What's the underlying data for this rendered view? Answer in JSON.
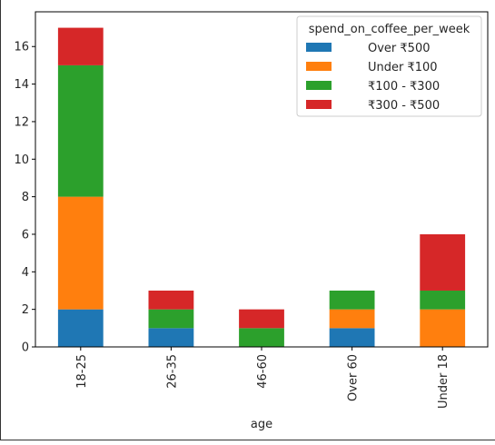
{
  "chart_data": {
    "type": "bar",
    "stacked": true,
    "categories": [
      "18-25",
      "26-35",
      "46-60",
      "Over 60",
      "Under 18"
    ],
    "series": [
      {
        "name": "Over ₹500",
        "color": "#1f77b4",
        "values": [
          2,
          1,
          0,
          1,
          0
        ]
      },
      {
        "name": "Under ₹100",
        "color": "#ff7f0e",
        "values": [
          6,
          0,
          0,
          1,
          2
        ]
      },
      {
        "name": "₹100 - ₹300",
        "color": "#2ca02c",
        "values": [
          7,
          1,
          1,
          1,
          1
        ]
      },
      {
        "name": "₹300 - ₹500",
        "color": "#d62728",
        "values": [
          2,
          1,
          1,
          0,
          3
        ]
      }
    ],
    "xlabel": "age",
    "ylabel": "",
    "ylim": [
      0,
      17.85
    ],
    "yticks": [
      0,
      2,
      4,
      6,
      8,
      10,
      12,
      14,
      16
    ],
    "legend": {
      "title": "spend_on_coffee_per_week",
      "position": "top-right"
    },
    "grid": false
  }
}
